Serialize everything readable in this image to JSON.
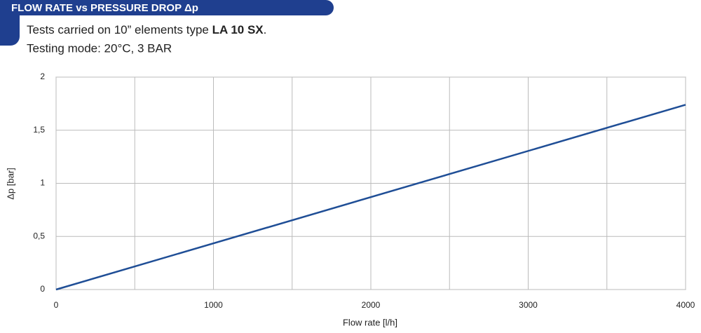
{
  "chart_data": {
    "type": "line",
    "title": "FLOW RATE vs PRESSURE DROP Δp",
    "subtitle_parts": [
      "Tests carried on 10” elements type ",
      "LA 10 SX",
      "."
    ],
    "subtitle2": "Testing mode: 20°C, 3 BAR",
    "xlabel": "Flow rate [l/h]",
    "ylabel": "Δp [bar]",
    "x": [
      0,
      4000
    ],
    "series": [
      {
        "name": "LA 10 SX",
        "color": "#1f4e96",
        "values": [
          0,
          1.74
        ]
      }
    ],
    "xlim": [
      0,
      4000
    ],
    "xticks": [
      0,
      1000,
      2000,
      3000,
      4000
    ],
    "xminor": [
      500,
      1500,
      2500,
      3500
    ],
    "ylim": [
      0,
      2
    ],
    "yticks": [
      0,
      {
        "value": 0.5,
        "label": "0,5"
      },
      1,
      {
        "value": 1.5,
        "label": "1,5"
      },
      2
    ],
    "grid": true
  }
}
